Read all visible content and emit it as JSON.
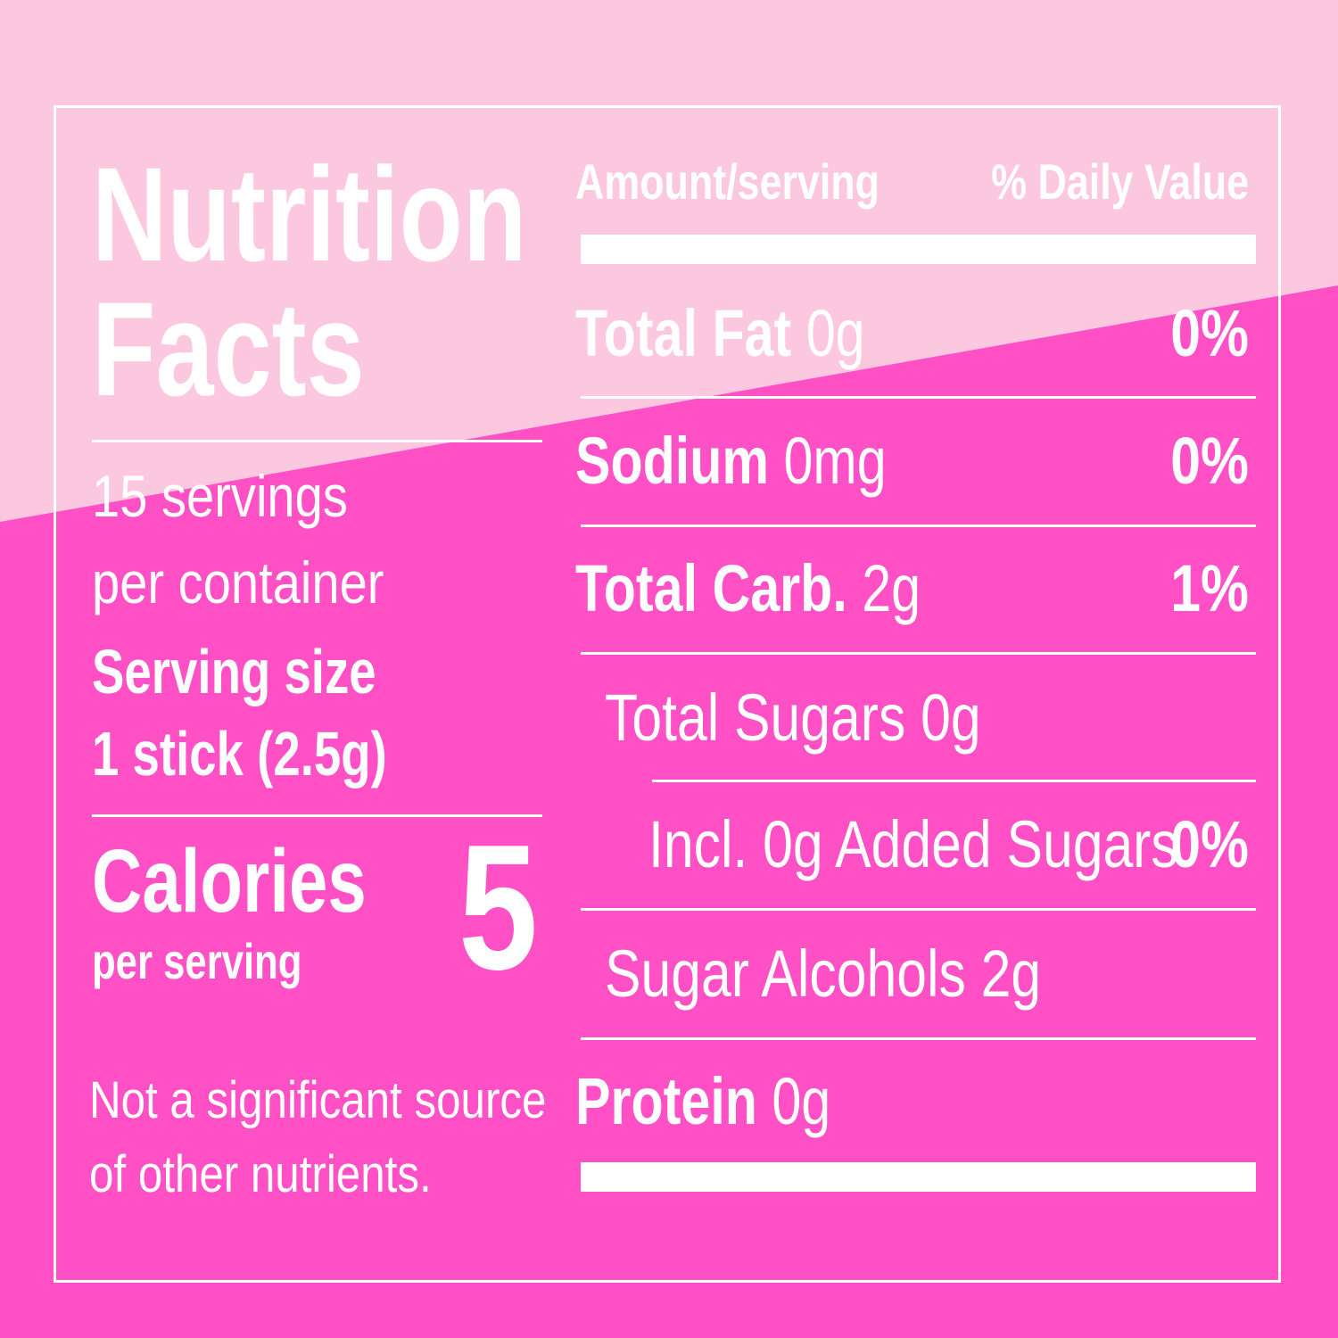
{
  "colors": {
    "background_light": "#fcc8df",
    "background_dark": "#ff50c5",
    "text": "#ffffff"
  },
  "label": {
    "title_line1": "Nutrition",
    "title_line2": "Facts",
    "servings_line1": "15 servings",
    "servings_line2": "per container",
    "serving_size_label": "Serving size",
    "serving_size_value": "1 stick (2.5g)",
    "calories_label": "Calories",
    "calories_sub": "per serving",
    "calories_value": "5",
    "footnote_line1": "Not a significant source",
    "footnote_line2": "of other nutrients.",
    "header_amount": "Amount/serving",
    "header_dv": "% Daily Value",
    "nutrients": [
      {
        "name": "Total Fat",
        "amount": "0g",
        "dv": "0%"
      },
      {
        "name": "Sodium",
        "amount": "0mg",
        "dv": "0%"
      },
      {
        "name": "Total Carb.",
        "amount": "2g",
        "dv": "1%"
      },
      {
        "name": "Total Sugars 0g",
        "amount": "",
        "dv": ""
      },
      {
        "name": "Incl. 0g Added Sugars",
        "amount": "",
        "dv": "0%"
      },
      {
        "name": "Sugar Alcohols 2g",
        "amount": "",
        "dv": ""
      },
      {
        "name": "Protein",
        "amount": "0g",
        "dv": ""
      }
    ]
  }
}
